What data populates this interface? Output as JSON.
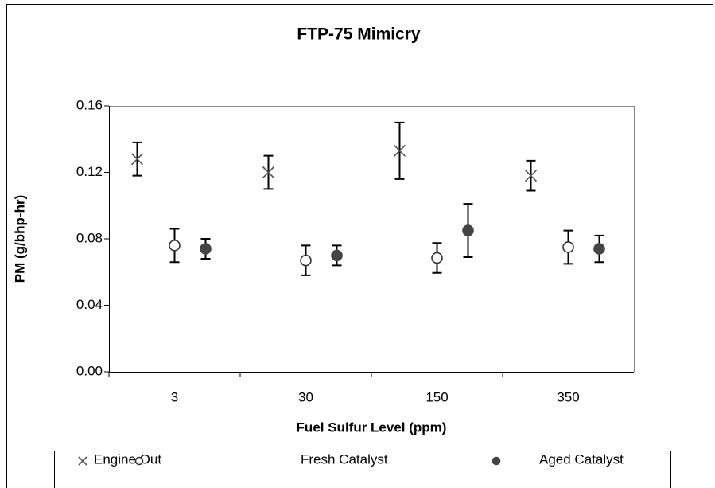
{
  "chart_data": {
    "type": "scatter",
    "title": "FTP-75 Mimicry",
    "xlabel": "Fuel Sulfur Level (ppm)",
    "ylabel": "PM (g/bhp-hr)",
    "categories": [
      "3",
      "30",
      "150",
      "350"
    ],
    "ylim": [
      0,
      0.16
    ],
    "yticks": [
      {
        "value": 0,
        "label": "0.00"
      },
      0.04,
      0.08,
      0.12,
      0.16
    ],
    "series": [
      {
        "name": "Engine Out",
        "color": "#555555",
        "marker": "x",
        "values": [
          0.128,
          0.12,
          0.133,
          0.118
        ],
        "errors": [
          0.01,
          0.01,
          0.017,
          0.009
        ]
      },
      {
        "name": "Fresh Catalyst",
        "color": "#333333",
        "marker": "open",
        "values": [
          0.076,
          0.067,
          0.0685,
          0.075
        ],
        "errors": [
          0.01,
          0.009,
          0.009,
          0.01
        ]
      },
      {
        "name": "Aged Catalyst",
        "color": "#444444",
        "marker": "filled",
        "values": [
          0.074,
          0.07,
          0.085,
          0.074
        ],
        "errors": [
          0.006,
          0.006,
          0.016,
          0.008
        ]
      }
    ]
  }
}
